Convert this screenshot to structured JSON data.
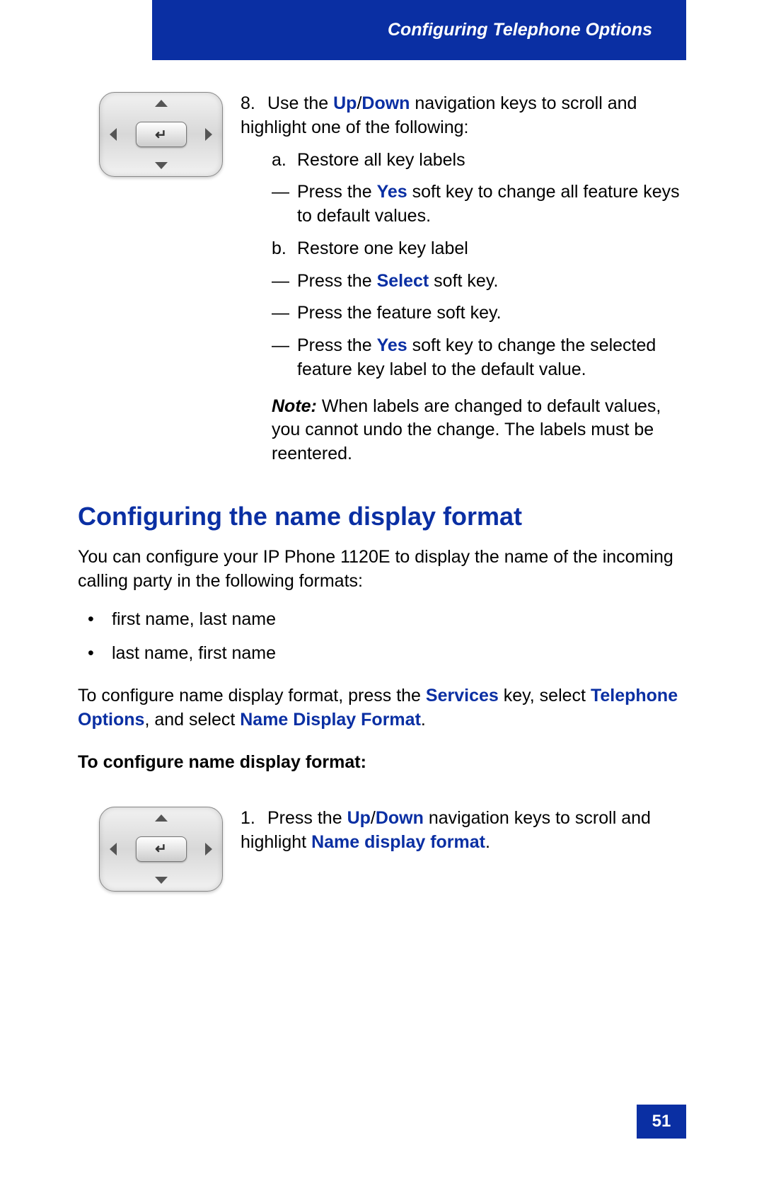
{
  "colors": {
    "brand_blue": "#0a2fa3",
    "text": "#000000",
    "white": "#ffffff"
  },
  "header": {
    "title": "Configuring Telephone Options"
  },
  "step8": {
    "number": "8.",
    "lead_a": "Use the ",
    "up": "Up",
    "slash": "/",
    "down": "Down",
    "lead_b": " navigation keys to scroll and highlight one of the following:",
    "a_label": "a.",
    "a_text": "Restore all key labels",
    "a_dash1_pre": "Press the ",
    "a_dash1_key": "Yes",
    "a_dash1_post": " soft key to change all feature keys to default values.",
    "b_label": "b.",
    "b_text": "Restore one key label",
    "b_dash1_pre": "Press the ",
    "b_dash1_key": "Select",
    "b_dash1_post": " soft key.",
    "b_dash2": "Press the feature soft key.",
    "b_dash3_pre": "Press the ",
    "b_dash3_key": "Yes",
    "b_dash3_post": " soft key to change the selected feature key label to the default value.",
    "note_label": "Note:",
    "note_text": " When labels are changed to default values, you cannot undo the change. The labels must be reentered.",
    "dash": "—"
  },
  "section": {
    "heading": "Configuring the name display format",
    "para1": "You can configure your IP Phone 1120E to display the name of the incoming calling party in the following formats:",
    "bullets": [
      "first name, last name",
      "last name, first name"
    ],
    "para2_a": "To configure name display format, press the ",
    "para2_key1": "Services",
    "para2_b": " key, select ",
    "para2_key2": "Telephone Options",
    "para2_c": ", and select ",
    "para2_key3": "Name Display Format",
    "para2_d": ".",
    "subhead": "To configure name display format:"
  },
  "step1": {
    "number": "1.",
    "lead_a": "Press the ",
    "up": "Up",
    "slash": "/",
    "down": "Down",
    "lead_b": " navigation keys to scroll and highlight ",
    "target": "Name display format",
    "period": "."
  },
  "page_number": "51",
  "bullet_char": "•"
}
